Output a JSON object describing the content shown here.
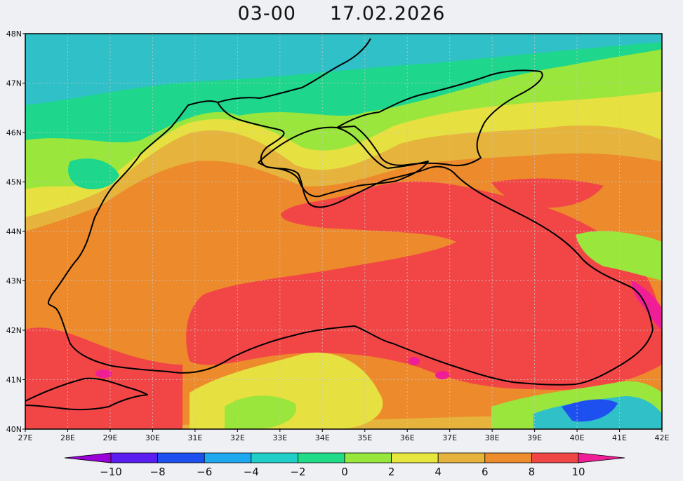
{
  "header": {
    "time": "03-00",
    "date": "17.02.2026"
  },
  "map": {
    "region": "Black Sea",
    "lon_range": [
      27,
      42
    ],
    "lat_range": [
      40,
      48
    ],
    "lon_ticks": [
      "27E",
      "28E",
      "29E",
      "30E",
      "31E",
      "32E",
      "33E",
      "34E",
      "35E",
      "36E",
      "37E",
      "38E",
      "39E",
      "40E",
      "41E",
      "42E"
    ],
    "lat_ticks": [
      "48N",
      "47N",
      "46N",
      "45N",
      "44N",
      "43N",
      "42N",
      "41N",
      "40N"
    ],
    "grid": true
  },
  "colorbar": {
    "labels": [
      "-10",
      "-8",
      "-6",
      "-4",
      "-2",
      "0",
      "2",
      "4",
      "6",
      "8",
      "10"
    ],
    "colors": [
      "#9a00d8",
      "#5a1ef0",
      "#1e50f0",
      "#1ea8f0",
      "#20d0c8",
      "#20dc88",
      "#96e63c",
      "#e6e640",
      "#e6b43c",
      "#ec8c2c",
      "#f04646",
      "#f01e96"
    ],
    "extend": "both"
  },
  "palette": {
    "land_cold": "#1ec8a0",
    "teal": "#30c0c8",
    "green": "#9ae63c",
    "yellow": "#e6e040",
    "amber": "#e6b43c",
    "orange": "#ec8a2c",
    "red": "#f24646",
    "magenta": "#f01e96",
    "blue": "#1e50f0",
    "coast": "#000000"
  }
}
